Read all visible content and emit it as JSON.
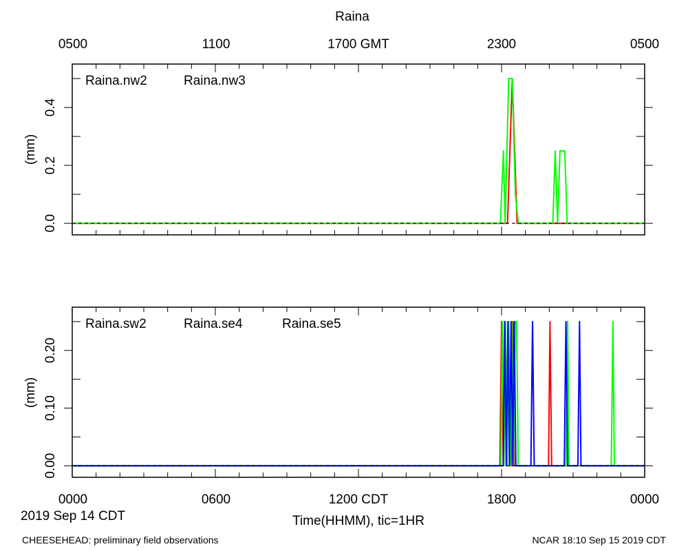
{
  "title": "Raina",
  "x_axis": {
    "top_tick_labels": [
      "0500",
      "1100",
      "1700 GMT",
      "2300",
      "0500"
    ],
    "bottom_tick_labels": [
      "0000",
      "0600",
      "1200 CDT",
      "1800",
      "0000"
    ],
    "label": "Time(HHMM), tic=1HR",
    "date_label": "2019 Sep 14 CDT"
  },
  "footer": {
    "left": "CHEESEHEAD: preliminary field observations",
    "right": "NCAR 18:10 Sep 15 2019 CDT"
  },
  "colors": {
    "red": "#ff0000",
    "green": "#00ff00",
    "blue": "#0000ff"
  },
  "chart_data": [
    {
      "type": "line",
      "ylabel": "(mm)",
      "xlim": [
        0,
        24
      ],
      "ylim": [
        -0.04,
        0.55
      ],
      "yticks": [
        "0.0",
        "0.2",
        "0.4"
      ],
      "yticks_values": [
        0.0,
        0.2,
        0.4
      ],
      "legend_placement": "top-left",
      "series": [
        {
          "name": "Raina.nw2",
          "color": "#ff0000",
          "x": [
            0,
            18.25,
            18.35,
            18.45,
            18.55,
            18.65,
            24
          ],
          "y": [
            0,
            0,
            0.25,
            0.5,
            0.25,
            0,
            0
          ]
        },
        {
          "name": "Raina.nw3",
          "color": "#00ff00",
          "x": [
            0,
            17.95,
            18.08,
            18.15,
            18.3,
            18.45,
            18.58,
            18.7,
            20.15,
            20.25,
            20.35,
            20.45,
            20.55,
            20.65,
            20.75,
            24
          ],
          "y": [
            0,
            0,
            0.25,
            0,
            0.5,
            0.5,
            0.1,
            0,
            0,
            0.25,
            0,
            0.25,
            0.25,
            0.25,
            0,
            0
          ]
        }
      ]
    },
    {
      "type": "line",
      "ylabel": "(mm)",
      "xlim": [
        0,
        24
      ],
      "ylim": [
        -0.02,
        0.275
      ],
      "yticks": [
        "0.00",
        "0.10",
        "0.20"
      ],
      "yticks_values": [
        0.0,
        0.1,
        0.2
      ],
      "legend_placement": "top-left",
      "series": [
        {
          "name": "Raina.sw2",
          "color": "#ff0000",
          "x": [
            0,
            17.93,
            18.0,
            18.07,
            18.13,
            18.2,
            18.27,
            18.4,
            18.47,
            18.53,
            19.0,
            19.97,
            20.03,
            20.1,
            24
          ],
          "y": [
            0,
            0,
            0.25,
            0,
            0.25,
            0,
            0.25,
            0,
            0.25,
            0,
            0,
            0,
            0.25,
            0,
            0
          ]
        },
        {
          "name": "Raina.se4",
          "color": "#00ff00",
          "x": [
            0,
            17.97,
            18.03,
            18.1,
            18.17,
            18.23,
            18.3,
            18.37,
            18.43,
            18.5,
            18.57,
            18.63,
            18.7,
            18.77,
            20.7,
            20.77,
            20.83,
            22.6,
            22.67,
            22.73,
            24
          ],
          "y": [
            0,
            0,
            0.25,
            0,
            0.25,
            0,
            0.25,
            0,
            0.25,
            0,
            0.25,
            0.25,
            0,
            0,
            0,
            0.25,
            0,
            0,
            0.25,
            0,
            0
          ]
        },
        {
          "name": "Raina.se5",
          "color": "#0000ff",
          "x": [
            0,
            18.07,
            18.13,
            18.2,
            18.27,
            18.33,
            18.4,
            18.47,
            18.53,
            18.6,
            19.23,
            19.3,
            19.37,
            20.63,
            20.7,
            20.77,
            21.2,
            21.27,
            21.33,
            24
          ],
          "y": [
            0,
            0,
            0.25,
            0,
            0.25,
            0,
            0.25,
            0,
            0.25,
            0,
            0,
            0.25,
            0,
            0,
            0.25,
            0,
            0,
            0.25,
            0,
            0
          ]
        }
      ]
    }
  ]
}
